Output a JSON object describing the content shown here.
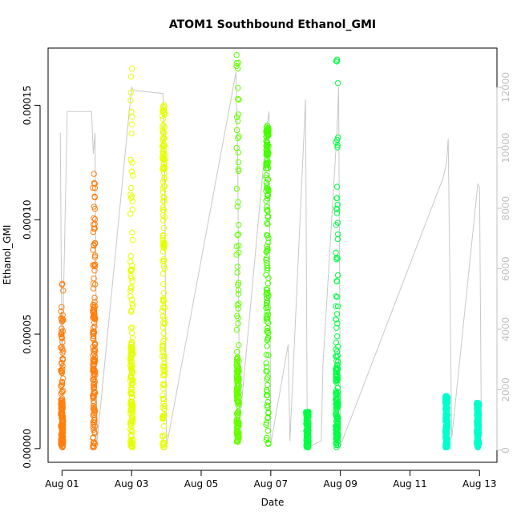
{
  "chart_data": {
    "type": "scatter",
    "title": "ATOM1 Southbound Ethanol_GMI",
    "xlabel": "Date",
    "ylabel": "Ethanol_GMI",
    "x_ticks": [
      "Aug 01",
      "Aug 03",
      "Aug 05",
      "Aug 07",
      "Aug 09",
      "Aug 11",
      "Aug 13"
    ],
    "x_tick_days": [
      1,
      3,
      5,
      7,
      9,
      11,
      13
    ],
    "xlim": [
      0.6,
      13.5
    ],
    "y_ticks": [
      "0.00000",
      "0.00005",
      "0.00010",
      "0.00015"
    ],
    "y_tick_values": [
      0,
      5e-05,
      0.0001,
      0.00015
    ],
    "ylim": [
      -6e-06,
      0.000175
    ],
    "y2_ticks": [
      "0",
      "2000",
      "4000",
      "6000",
      "8000",
      "10000",
      "12000"
    ],
    "y2_tick_values": [
      0,
      2000,
      4000,
      6000,
      8000,
      10000,
      12000
    ],
    "y2lim": [
      -400,
      13300
    ],
    "grid": false,
    "point_series": [
      {
        "day": 1.0,
        "ymin": 5e-07,
        "ymax": 7.2e-05,
        "dense_max": 2.1e-05,
        "color": "#ff7f0e"
      },
      {
        "day": 1.92,
        "ymin": 5e-07,
        "ymax": 0.00012,
        "dense_max": 5.7e-05,
        "color": "#ff7f0e"
      },
      {
        "day": 3.0,
        "ymin": 5e-07,
        "ymax": 0.000166,
        "dense_max": 4.6e-05,
        "color": "#e6ff00"
      },
      {
        "day": 3.92,
        "ymin": 5e-07,
        "ymax": 0.00015,
        "dense_max": 0.000122,
        "color": "#e6ff00"
      },
      {
        "day": 6.05,
        "ymin": 3e-06,
        "ymax": 0.000172,
        "dense_max": 3.5e-05,
        "color": "#66ff00"
      },
      {
        "day": 6.9,
        "ymin": 2e-06,
        "ymax": 0.000141,
        "dense_max": 0.000128,
        "color": "#44ff00"
      },
      {
        "day": 8.05,
        "ymin": 5e-07,
        "ymax": 1.6e-05,
        "dense_max": 1.6e-05,
        "color": "#00ff44"
      },
      {
        "day": 8.9,
        "ymin": 5e-07,
        "ymax": 0.00017,
        "dense_max": 3.5e-05,
        "color": "#00ff44"
      },
      {
        "day": 12.05,
        "ymin": 5e-07,
        "ymax": 2.3e-05,
        "dense_max": 2e-05,
        "color": "#00ffcc"
      },
      {
        "day": 12.95,
        "ymin": 5e-07,
        "ymax": 2e-05,
        "dense_max": 1.9e-05,
        "color": "#00ffcc"
      }
    ],
    "secondary_line": {
      "color": "#c8c8c8",
      "points": [
        [
          0.95,
          10500
        ],
        [
          1.0,
          2700
        ],
        [
          1.15,
          11200
        ],
        [
          1.2,
          11200
        ],
        [
          1.85,
          11200
        ],
        [
          1.9,
          9800
        ],
        [
          1.95,
          10500
        ],
        [
          2.0,
          200
        ],
        [
          3.0,
          12000
        ],
        [
          3.05,
          11900
        ],
        [
          3.9,
          11800
        ],
        [
          3.95,
          9200
        ],
        [
          4.0,
          100
        ],
        [
          6.0,
          12500
        ],
        [
          6.05,
          9600
        ],
        [
          6.1,
          800
        ],
        [
          6.9,
          10800
        ],
        [
          6.95,
          11200
        ],
        [
          7.0,
          200
        ],
        [
          7.5,
          3500
        ],
        [
          7.55,
          300
        ],
        [
          8.0,
          11600
        ],
        [
          8.05,
          100
        ],
        [
          8.45,
          300
        ],
        [
          8.5,
          2800
        ],
        [
          8.9,
          10500
        ],
        [
          8.95,
          12000
        ],
        [
          9.0,
          150
        ],
        [
          11.95,
          9000
        ],
        [
          12.05,
          9500
        ],
        [
          12.1,
          10300
        ],
        [
          12.2,
          400
        ],
        [
          12.95,
          8800
        ],
        [
          13.0,
          8700
        ],
        [
          13.05,
          900
        ]
      ]
    }
  }
}
